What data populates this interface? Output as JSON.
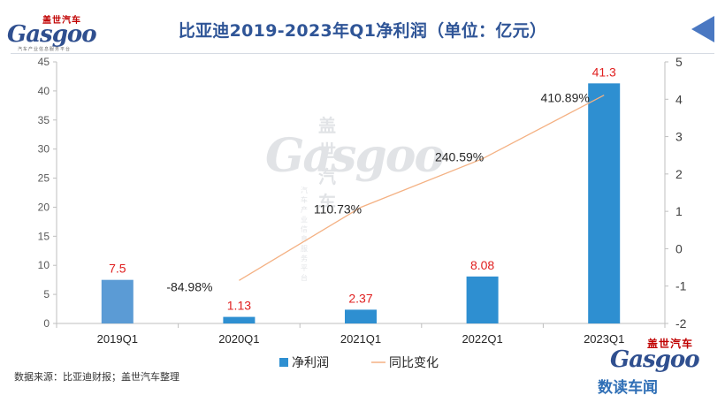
{
  "header": {
    "title": "比亚迪2019-2023年Q1净利润（单位：亿元）",
    "logo_cn": "盖世汽车",
    "logo_en": "Gasgoo",
    "logo_sub": "汽车产业信息服务平台"
  },
  "footer": {
    "source": "数据来源：比亚迪财报；盖世汽车整理",
    "column_name": "数读车闻"
  },
  "colors": {
    "bar": "#2e8fd1",
    "bar_first": "#5b9bd5",
    "line": "#f4b183",
    "bar_label": "#e02020",
    "title": "#2f5597"
  },
  "chart_data": {
    "type": "bar",
    "categories": [
      "2019Q1",
      "2020Q1",
      "2021Q1",
      "2022Q1",
      "2023Q1"
    ],
    "series": [
      {
        "name": "净利润",
        "type": "bar",
        "axis": "left",
        "values": [
          7.5,
          1.13,
          2.37,
          8.08,
          41.3
        ],
        "labels": [
          "7.5",
          "1.13",
          "2.37",
          "8.08",
          "41.3"
        ]
      },
      {
        "name": "同比变化",
        "type": "line",
        "axis": "right",
        "values": [
          null,
          -0.8498,
          1.1073,
          2.4059,
          4.1089
        ],
        "labels": [
          "",
          "-84.98%",
          "110.73%",
          "240.59%",
          "410.89%"
        ]
      }
    ],
    "y_left": {
      "min": 0,
      "max": 45,
      "ticks": [
        0,
        5,
        10,
        15,
        20,
        25,
        30,
        35,
        40,
        45
      ]
    },
    "y_right": {
      "min": -2,
      "max": 5,
      "ticks": [
        -2,
        -1,
        0,
        1,
        2,
        3,
        4,
        5
      ]
    },
    "legend_position": "bottom",
    "grid": false
  }
}
